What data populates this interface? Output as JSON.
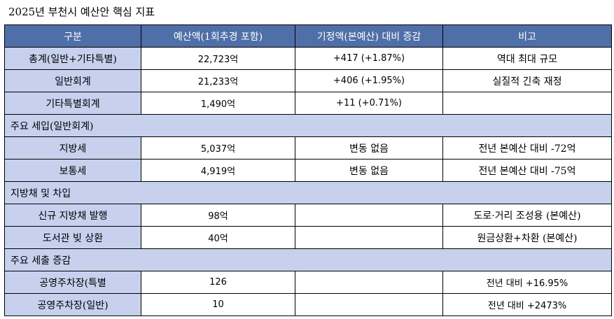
{
  "title": "2025년 부천시 예산안 핵심 지표",
  "headers": [
    "구분",
    "예산액(1회추경 포함)",
    "기정액(본예산) 대비 증감",
    "비고"
  ],
  "groups": [
    {
      "section": "",
      "rows": [
        {
          "label": "총계(일반+기타특별)",
          "amount": "22,723억",
          "change": "+417 (+1.87%)",
          "note": "역대 최대 규모"
        },
        {
          "label": "일반회계",
          "amount": "21,233억",
          "change": "+406 (+1.95%)",
          "note": "실질적 긴축 재정"
        },
        {
          "label": "기타특별회계",
          "amount": "1,490억",
          "change": "+11 (+0.71%)",
          "note": ""
        }
      ]
    },
    {
      "section": "주요 세입(일반회계)",
      "rows": [
        {
          "label": "지방세",
          "amount": "5,037억",
          "change": "변동 없음",
          "note": "전년 본예산 대비 -72억"
        },
        {
          "label": "보통세",
          "amount": "4,919억",
          "change": "변동 없음",
          "note": "전년 본예산 대비 -75억"
        }
      ]
    },
    {
      "section": "지방채 및 차입",
      "rows": [
        {
          "label": "신규 지방채 발행",
          "amount": "98억",
          "change": "",
          "note": "도로·거리 조성용 (본예산)"
        },
        {
          "label": "도서관 빚 상환",
          "amount": "40억",
          "change": "",
          "note": "원금상환+차환 (본예산)"
        }
      ]
    },
    {
      "section": "주요 세출 증감",
      "rows": [
        {
          "label": "공영주차장(특별",
          "amount": "126",
          "change": "",
          "note": "전년 대비 +16.95%"
        },
        {
          "label": "공영주차장(일반)",
          "amount": "10",
          "change": "",
          "note": "전년 대비 +2473%"
        }
      ]
    }
  ]
}
